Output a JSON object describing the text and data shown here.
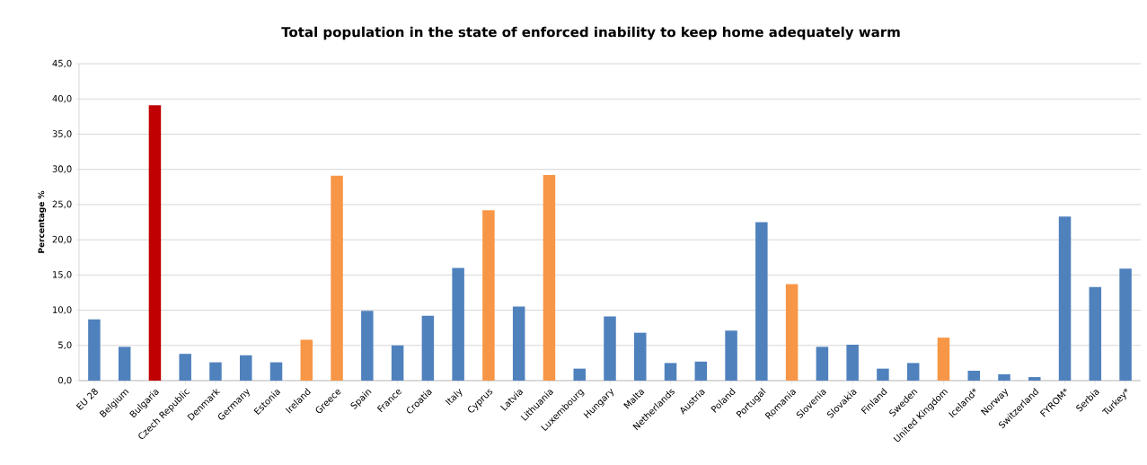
{
  "chart_data": {
    "type": "bar",
    "title": "Total population  in the state of enforced inability to keep home adequately warm",
    "ylabel": "Percentage %",
    "categories": [
      "EU 28",
      "Belgium",
      "Bulgaria",
      "Czech Republic",
      "Denmark",
      "Germany",
      "Estonia",
      "Ireland",
      "Greece",
      "Spain",
      "France",
      "Croatia",
      "Italy",
      "Cyprus",
      "Latvia",
      "Lithuania",
      "Luxembourg",
      "Hungary",
      "Malta",
      "Netherlands",
      "Austria",
      "Poland",
      "Portugal",
      "Romania",
      "Slovenia",
      "Slovakia",
      "Finland",
      "Sweden",
      "United Kingdom",
      "Iceland*",
      "Norway",
      "Switzerland",
      "FYROM*",
      "Serbia",
      "Turkey*"
    ],
    "values": [
      8.7,
      4.8,
      39.1,
      3.8,
      2.6,
      3.6,
      2.6,
      5.8,
      29.1,
      9.9,
      5.0,
      9.2,
      16.0,
      24.2,
      10.5,
      29.2,
      1.7,
      9.1,
      6.8,
      2.5,
      2.7,
      7.1,
      22.5,
      13.7,
      4.8,
      5.1,
      1.7,
      2.5,
      6.1,
      1.4,
      0.9,
      0.5,
      23.3,
      13.3,
      15.9
    ],
    "colors": [
      "#4f81bd",
      "#4f81bd",
      "#c00000",
      "#4f81bd",
      "#4f81bd",
      "#4f81bd",
      "#4f81bd",
      "#f79646",
      "#f79646",
      "#4f81bd",
      "#4f81bd",
      "#4f81bd",
      "#4f81bd",
      "#f79646",
      "#4f81bd",
      "#f79646",
      "#4f81bd",
      "#4f81bd",
      "#4f81bd",
      "#4f81bd",
      "#4f81bd",
      "#4f81bd",
      "#4f81bd",
      "#f79646",
      "#4f81bd",
      "#4f81bd",
      "#4f81bd",
      "#4f81bd",
      "#f79646",
      "#4f81bd",
      "#4f81bd",
      "#4f81bd",
      "#4f81bd",
      "#4f81bd",
      "#4f81bd"
    ],
    "ylim": [
      0,
      45
    ],
    "yticks": [
      {
        "value": 0,
        "label": "0,0"
      },
      {
        "value": 5,
        "label": "5,0"
      },
      {
        "value": 10,
        "label": "10,0"
      },
      {
        "value": 15,
        "label": "15,0"
      },
      {
        "value": 20,
        "label": "20,0"
      },
      {
        "value": 25,
        "label": "25,0"
      },
      {
        "value": 30,
        "label": "30,0"
      },
      {
        "value": 35,
        "label": "35,0"
      },
      {
        "value": 40,
        "label": "40,0"
      },
      {
        "value": 45,
        "label": "45,0"
      }
    ],
    "grid": "y"
  }
}
